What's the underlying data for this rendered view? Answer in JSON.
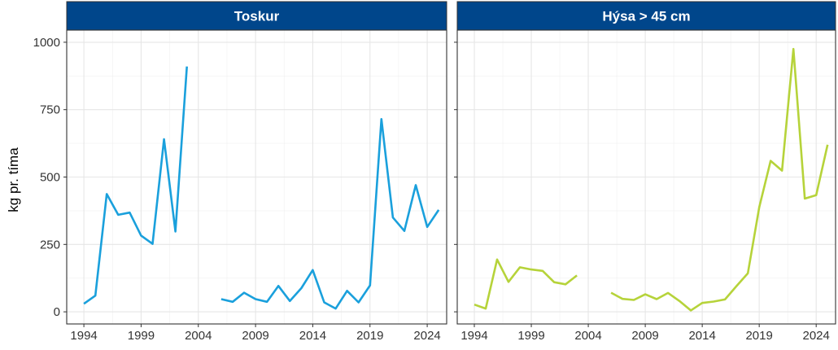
{
  "chart_data": {
    "type": "line",
    "ylabel": "kg pr. tíma",
    "ylim": [
      -45,
      1045
    ],
    "xlim": [
      1992.5,
      2025.7
    ],
    "x_ticks": [
      1994,
      1999,
      2004,
      2009,
      2014,
      2019,
      2024
    ],
    "y_ticks": [
      0,
      250,
      500,
      750,
      1000
    ],
    "grid": true,
    "strip_color": "#00468b",
    "panels": [
      {
        "title": "Toskur",
        "color": "#1aa0dc",
        "segments": [
          {
            "x": [
              1994,
              1995,
              1996,
              1997,
              1998,
              1999,
              2000,
              2001,
              2002,
              2003
            ],
            "y": [
              30,
              60,
              437,
              360,
              368,
              283,
              252,
              640,
              298,
              910
            ]
          },
          {
            "x": [
              2006,
              2007,
              2008,
              2009,
              2010,
              2011,
              2012,
              2013,
              2014,
              2015,
              2016,
              2017,
              2018,
              2019,
              2020,
              2021,
              2022,
              2023,
              2024,
              2025
            ],
            "y": [
              47,
              37,
              71,
              47,
              37,
              96,
              40,
              88,
              155,
              35,
              12,
              78,
              35,
              98,
              715,
              350,
              300,
              470,
              315,
              378
            ]
          }
        ]
      },
      {
        "title": "Hýsa > 45 cm",
        "color": "#b6d33a",
        "segments": [
          {
            "x": [
              1994,
              1995,
              1996,
              1997,
              1998,
              1999,
              2000,
              2001,
              2002,
              2003
            ],
            "y": [
              27,
              12,
              194,
              111,
              165,
              157,
              152,
              110,
              102,
              135
            ]
          },
          {
            "x": [
              2006,
              2007,
              2008,
              2009,
              2010,
              2011,
              2012,
              2013,
              2014,
              2015,
              2016,
              2017,
              2018,
              2019,
              2020,
              2021,
              2022,
              2023,
              2024,
              2025
            ],
            "y": [
              71,
              48,
              44,
              65,
              47,
              70,
              40,
              5,
              33,
              38,
              46,
              95,
              143,
              388,
              560,
              524,
              975,
              420,
              433,
              620
            ]
          }
        ]
      }
    ]
  }
}
